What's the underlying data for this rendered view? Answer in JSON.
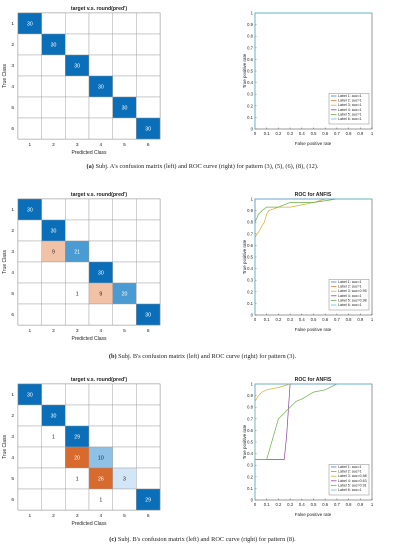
{
  "figures": [
    {
      "cm_title": "target v.s. round(pred')",
      "cm_xlabel": "Predicted Class",
      "cm_ylabel": "True Class",
      "roc_title": "",
      "roc_xlabel": "False positive rate",
      "roc_ylabel": "True positive rate",
      "caption_letter": "(a)",
      "caption_text": "Subj. A's confusion matrix (left) and ROC curve (right) for pattern (3), (5), (6), (8), (12)."
    },
    {
      "cm_title": "target v.s. round(pred')",
      "cm_xlabel": "Predicted Class",
      "cm_ylabel": "True Class",
      "roc_title": "ROC for ANFIS",
      "roc_xlabel": "False positive rate",
      "roc_ylabel": "True positive rate",
      "caption_letter": "(b)",
      "caption_text": "Subj. B's confusion matrix (left) and ROC curve (right) for pattern (3)."
    },
    {
      "cm_title": "target v.s. round(pred')",
      "cm_xlabel": "Predicted Class",
      "cm_ylabel": "True Class",
      "roc_title": "ROC for ANFIS",
      "roc_xlabel": "False positive rate",
      "roc_ylabel": "True positive rate",
      "caption_letter": "(c)",
      "caption_text": "Subj. B's confusion matrix (left) and ROC curve (right) for pattern (8)."
    }
  ],
  "chart_data": [
    {
      "type": "heatmap",
      "title": "target v.s. round(pred')",
      "xlabel": "Predicted Class",
      "ylabel": "True Class",
      "x_categories": [
        "1",
        "2",
        "3",
        "4",
        "5",
        "6"
      ],
      "y_categories": [
        "1",
        "2",
        "3",
        "4",
        "5",
        "6"
      ],
      "matrix": [
        [
          30,
          0,
          0,
          0,
          0,
          0
        ],
        [
          0,
          30,
          0,
          0,
          0,
          0
        ],
        [
          0,
          0,
          30,
          0,
          0,
          0
        ],
        [
          0,
          0,
          0,
          30,
          0,
          0
        ],
        [
          0,
          0,
          0,
          0,
          30,
          0
        ],
        [
          0,
          0,
          0,
          0,
          0,
          30
        ]
      ],
      "colors": {
        "strong": "#0a6eb8",
        "medium": "#4a9bd2",
        "light": "#d3e6f5",
        "orange_strong": "#d96a2e",
        "orange_medium": "#eaa07a",
        "orange_light": "#f6d8c6"
      }
    },
    {
      "type": "line",
      "title": "ROC for ANFIS",
      "xlabel": "False positive rate",
      "ylabel": "True positive rate",
      "xlim": [
        0,
        1
      ],
      "ylim": [
        0,
        1
      ],
      "xticks": [
        "0",
        "0.1",
        "0.2",
        "0.3",
        "0.4",
        "0.5",
        "0.6",
        "0.7",
        "0.8",
        "0.9",
        "1"
      ],
      "yticks": [
        "0",
        "0.1",
        "0.2",
        "0.3",
        "0.4",
        "0.5",
        "0.6",
        "0.7",
        "0.8",
        "0.9",
        "1"
      ],
      "legend_position": "bottom-right",
      "series": [
        {
          "name": "Label 1: auc=1",
          "color": "#3d7dd8",
          "x": [
            0,
            0,
            1
          ],
          "y": [
            0,
            1,
            1
          ]
        },
        {
          "name": "Label 2: auc=1",
          "color": "#e07b39",
          "x": [
            0,
            0,
            1
          ],
          "y": [
            0,
            1,
            1
          ]
        },
        {
          "name": "Label 3: auc=1",
          "color": "#d9b02a",
          "x": [
            0,
            0,
            1
          ],
          "y": [
            0,
            1,
            1
          ]
        },
        {
          "name": "Label 4: auc=1",
          "color": "#8a3fa8",
          "x": [
            0,
            0,
            1
          ],
          "y": [
            0,
            1,
            1
          ]
        },
        {
          "name": "Label 5: auc=1",
          "color": "#6ab04c",
          "x": [
            0,
            0,
            1
          ],
          "y": [
            0,
            1,
            1
          ]
        },
        {
          "name": "Label 6: auc=1",
          "color": "#5bc0de",
          "x": [
            0,
            0,
            1
          ],
          "y": [
            0,
            1,
            1
          ]
        }
      ]
    },
    {
      "type": "heatmap",
      "title": "target v.s. round(pred')",
      "xlabel": "Predicted Class",
      "ylabel": "True Class",
      "x_categories": [
        "1",
        "2",
        "3",
        "4",
        "5",
        "6"
      ],
      "y_categories": [
        "1",
        "2",
        "3",
        "4",
        "5",
        "6"
      ],
      "matrix": [
        [
          30,
          0,
          0,
          0,
          0,
          0
        ],
        [
          0,
          30,
          0,
          0,
          0,
          0
        ],
        [
          0,
          9,
          21,
          0,
          0,
          0
        ],
        [
          0,
          0,
          0,
          30,
          0,
          0
        ],
        [
          0,
          0,
          1,
          9,
          20,
          0
        ],
        [
          0,
          0,
          0,
          0,
          0,
          30
        ]
      ]
    },
    {
      "type": "line",
      "title": "ROC for ANFIS",
      "xlabel": "False positive rate",
      "ylabel": "True positive rate",
      "xlim": [
        0,
        1
      ],
      "ylim": [
        0,
        1
      ],
      "xticks": [
        "0",
        "0.1",
        "0.2",
        "0.3",
        "0.4",
        "0.5",
        "0.6",
        "0.7",
        "0.8",
        "0.9",
        "1"
      ],
      "yticks": [
        "0",
        "0.1",
        "0.2",
        "0.3",
        "0.4",
        "0.5",
        "0.6",
        "0.7",
        "0.8",
        "0.9",
        "1"
      ],
      "legend_position": "bottom-right",
      "series": [
        {
          "name": "Label 1: auc=1",
          "color": "#3d7dd8",
          "x": [
            0,
            0,
            1
          ],
          "y": [
            0,
            1,
            1
          ]
        },
        {
          "name": "Label 2: auc=1",
          "color": "#e07b39",
          "x": [
            0,
            0,
            1
          ],
          "y": [
            0,
            1,
            1
          ]
        },
        {
          "name": "Label 3: auc=0.95",
          "color": "#d9b02a",
          "x": [
            0,
            0,
            0.02,
            0.04,
            0.06,
            0.08,
            0.1,
            0.12,
            0.2,
            0.3,
            0.5,
            0.6,
            1
          ],
          "y": [
            0,
            0.67,
            0.7,
            0.73,
            0.77,
            0.8,
            0.87,
            0.9,
            0.93,
            0.93,
            0.97,
            1,
            1
          ]
        },
        {
          "name": "Label 4: auc=1",
          "color": "#8a3fa8",
          "x": [
            0,
            0,
            1
          ],
          "y": [
            0,
            1,
            1
          ]
        },
        {
          "name": "Label 5: auc=0.98",
          "color": "#6ab04c",
          "x": [
            0,
            0,
            0.03,
            0.06,
            0.1,
            0.2,
            0.3,
            0.4,
            0.5,
            0.7,
            1
          ],
          "y": [
            0,
            0.8,
            0.87,
            0.9,
            0.93,
            0.93,
            0.97,
            0.97,
            0.97,
            1,
            1
          ]
        },
        {
          "name": "Label 6: auc=1",
          "color": "#5bc0de",
          "x": [
            0,
            0,
            1
          ],
          "y": [
            0,
            1,
            1
          ]
        }
      ]
    },
    {
      "type": "heatmap",
      "title": "target v.s. round(pred')",
      "xlabel": "Predicted Class",
      "ylabel": "True Class",
      "x_categories": [
        "1",
        "2",
        "3",
        "4",
        "5",
        "6"
      ],
      "y_categories": [
        "1",
        "2",
        "3",
        "4",
        "5",
        "6"
      ],
      "matrix": [
        [
          30,
          0,
          0,
          0,
          0,
          0
        ],
        [
          0,
          30,
          0,
          0,
          0,
          0
        ],
        [
          0,
          1,
          29,
          0,
          0,
          0
        ],
        [
          0,
          0,
          20,
          10,
          0,
          0
        ],
        [
          0,
          0,
          1,
          26,
          3,
          0
        ],
        [
          0,
          0,
          0,
          1,
          0,
          29
        ]
      ]
    },
    {
      "type": "line",
      "title": "ROC for ANFIS",
      "xlabel": "False positive rate",
      "ylabel": "True positive rate",
      "xlim": [
        0,
        1
      ],
      "ylim": [
        0,
        1
      ],
      "xticks": [
        "0",
        "0.1",
        "0.2",
        "0.3",
        "0.4",
        "0.5",
        "0.6",
        "0.7",
        "0.8",
        "0.9",
        "1"
      ],
      "yticks": [
        "0",
        "0.1",
        "0.2",
        "0.3",
        "0.4",
        "0.5",
        "0.6",
        "0.7",
        "0.8",
        "0.9",
        "1"
      ],
      "legend_position": "bottom-right",
      "series": [
        {
          "name": "Label 1: auc=1",
          "color": "#3d7dd8",
          "x": [
            0,
            0,
            1
          ],
          "y": [
            0,
            1,
            1
          ]
        },
        {
          "name": "Label 2: auc=1",
          "color": "#e07b39",
          "x": [
            0,
            0,
            1
          ],
          "y": [
            0,
            1,
            1
          ]
        },
        {
          "name": "Label 3: auc=0.98",
          "color": "#d9b02a",
          "x": [
            0,
            0,
            0.03,
            0.06,
            0.1,
            0.2,
            0.3,
            1
          ],
          "y": [
            0,
            0.85,
            0.9,
            0.93,
            0.95,
            0.97,
            1,
            1
          ]
        },
        {
          "name": "Label 4: auc=0.63",
          "color": "#8a3fa8",
          "x": [
            0,
            0,
            0.25,
            0.27,
            0.28,
            0.3,
            1
          ],
          "y": [
            0,
            0.35,
            0.35,
            0.55,
            0.7,
            1,
            1
          ]
        },
        {
          "name": "Label 5: auc=0.91",
          "color": "#6ab04c",
          "x": [
            0,
            0,
            0.1,
            0.2,
            0.3,
            0.35,
            0.4,
            0.45,
            0.5,
            0.6,
            0.7,
            1
          ],
          "y": [
            0,
            0.35,
            0.35,
            0.7,
            0.8,
            0.85,
            0.87,
            0.9,
            0.93,
            0.95,
            1,
            1
          ]
        },
        {
          "name": "Label 6: auc=1",
          "color": "#5bc0de",
          "x": [
            0,
            0,
            1
          ],
          "y": [
            0,
            1,
            1
          ]
        }
      ]
    }
  ]
}
